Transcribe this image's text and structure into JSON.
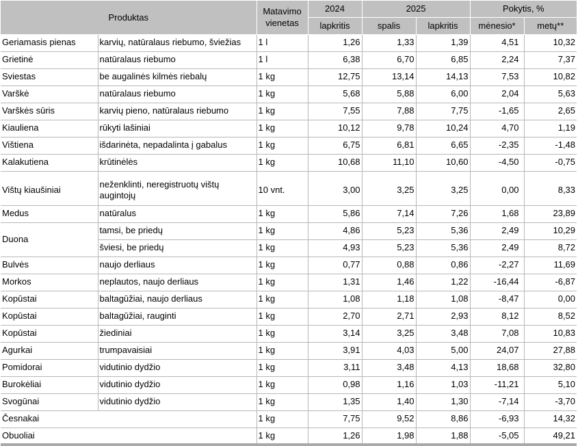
{
  "colors": {
    "header_bg": "#c0c0c0",
    "grid_line": "#b7b7b7",
    "bottom_bar": "#a9a9a9",
    "text": "#000000",
    "background": "#ffffff"
  },
  "table": {
    "header": {
      "produktas": "Produktas",
      "matavimo_vienetas": "Matavimo vienetas",
      "year_2024": "2024",
      "year_2025": "2025",
      "pokytis": "Pokytis, %",
      "sub_2024_lapkritis": "lapkritis",
      "sub_2025_spalis": "spalis",
      "sub_2025_lapkritis": "lapkritis",
      "sub_menesio": "mėnesio*",
      "sub_metu": "metų**"
    },
    "rows": [
      {
        "name": "Geriamasis pienas",
        "desc": "karvių, natūralaus riebumo, šviežias",
        "unit": "1 l",
        "v2024_11": "1,26",
        "v2025_10": "1,33",
        "v2025_11": "1,39",
        "chg_month": "4,51",
        "chg_year": "10,32"
      },
      {
        "name": "Grietinė",
        "desc": "natūralaus riebumo",
        "unit": "1 l",
        "v2024_11": "6,38",
        "v2025_10": "6,70",
        "v2025_11": "6,85",
        "chg_month": "2,24",
        "chg_year": "7,37"
      },
      {
        "name": "Sviestas",
        "desc": "be augalinės kilmės riebalų",
        "unit": "1 kg",
        "v2024_11": "12,75",
        "v2025_10": "13,14",
        "v2025_11": "14,13",
        "chg_month": "7,53",
        "chg_year": "10,82"
      },
      {
        "name": "Varškė",
        "desc": "natūralaus riebumo",
        "unit": "1 kg",
        "v2024_11": "5,68",
        "v2025_10": "5,88",
        "v2025_11": "6,00",
        "chg_month": "2,04",
        "chg_year": "5,63"
      },
      {
        "name": "Varškės sūris",
        "desc": "karvių pieno, natūralaus riebumo",
        "unit": "1 kg",
        "v2024_11": "7,55",
        "v2025_10": "7,88",
        "v2025_11": "7,75",
        "chg_month": "-1,65",
        "chg_year": "2,65"
      },
      {
        "name": "Kiauliena",
        "desc": "rūkyti lašiniai",
        "unit": "1 kg",
        "v2024_11": "10,12",
        "v2025_10": "9,78",
        "v2025_11": "10,24",
        "chg_month": "4,70",
        "chg_year": "1,19"
      },
      {
        "name": "Vištiena",
        "desc": "išdarinėta, nepadalinta į gabalus",
        "unit": "1 kg",
        "v2024_11": "6,75",
        "v2025_10": "6,81",
        "v2025_11": "6,65",
        "chg_month": "-2,35",
        "chg_year": "-1,48"
      },
      {
        "name": "Kalakutiena",
        "desc": "krūtinėlės",
        "unit": "1 kg",
        "v2024_11": "10,68",
        "v2025_10": "11,10",
        "v2025_11": "10,60",
        "chg_month": "-4,50",
        "chg_year": "-0,75"
      },
      {
        "name": "Vištų kiaušiniai",
        "desc": "neženklinti, neregistruotų vištų augintojų",
        "unit": "10 vnt.",
        "v2024_11": "3,00",
        "v2025_10": "3,25",
        "v2025_11": "3,25",
        "chg_month": "0,00",
        "chg_year": "8,33",
        "tall": true
      },
      {
        "name": "Medus",
        "desc": "natūralus",
        "unit": "1 kg",
        "v2024_11": "5,86",
        "v2025_10": "7,14",
        "v2025_11": "7,26",
        "chg_month": "1,68",
        "chg_year": "23,89"
      },
      {
        "name": "Duona",
        "desc": "tamsi, be priedų",
        "unit": "1 kg",
        "v2024_11": "4,86",
        "v2025_10": "5,23",
        "v2025_11": "5,36",
        "chg_month": "2,49",
        "chg_year": "10,29",
        "group": "start"
      },
      {
        "name": "",
        "desc": "šviesi, be priedų",
        "unit": "1 kg",
        "v2024_11": "4,93",
        "v2025_10": "5,23",
        "v2025_11": "5,36",
        "chg_month": "2,49",
        "chg_year": "8,72",
        "group": "cont"
      },
      {
        "name": "Bulvės",
        "desc": "naujo derliaus",
        "unit": "1 kg",
        "v2024_11": "0,77",
        "v2025_10": "0,88",
        "v2025_11": "0,86",
        "chg_month": "-2,27",
        "chg_year": "11,69"
      },
      {
        "name": "Morkos",
        "desc": "neplautos, naujo derliaus",
        "unit": "1 kg",
        "v2024_11": "1,31",
        "v2025_10": "1,46",
        "v2025_11": "1,22",
        "chg_month": "-16,44",
        "chg_year": "-6,87"
      },
      {
        "name": "Kopūstai",
        "desc": "baltagūžiai, naujo derliaus",
        "unit": "1 kg",
        "v2024_11": "1,08",
        "v2025_10": "1,18",
        "v2025_11": "1,08",
        "chg_month": "-8,47",
        "chg_year": "0,00"
      },
      {
        "name": "Kopūstai",
        "desc": "baltagūžiai, rauginti",
        "unit": "1 kg",
        "v2024_11": "2,70",
        "v2025_10": "2,71",
        "v2025_11": "2,93",
        "chg_month": "8,12",
        "chg_year": "8,52"
      },
      {
        "name": "Kopūstai",
        "desc": "žiediniai",
        "unit": "1 kg",
        "v2024_11": "3,14",
        "v2025_10": "3,25",
        "v2025_11": "3,48",
        "chg_month": "7,08",
        "chg_year": "10,83"
      },
      {
        "name": "Agurkai",
        "desc": "trumpavaisiai",
        "unit": "1 kg",
        "v2024_11": "3,91",
        "v2025_10": "4,03",
        "v2025_11": "5,00",
        "chg_month": "24,07",
        "chg_year": "27,88"
      },
      {
        "name": "Pomidorai",
        "desc": "vidutinio dydžio",
        "unit": "1 kg",
        "v2024_11": "3,11",
        "v2025_10": "3,48",
        "v2025_11": "4,13",
        "chg_month": "18,68",
        "chg_year": "32,80"
      },
      {
        "name": "Burokėliai",
        "desc": "vidutinio dydžio",
        "unit": "1 kg",
        "v2024_11": "0,98",
        "v2025_10": "1,16",
        "v2025_11": "1,03",
        "chg_month": "-11,21",
        "chg_year": "5,10"
      },
      {
        "name": "Svogūnai",
        "desc": "vidutinio dydžio",
        "unit": "1 kg",
        "v2024_11": "1,35",
        "v2025_10": "1,40",
        "v2025_11": "1,30",
        "chg_month": "-7,14",
        "chg_year": "-3,70"
      },
      {
        "name": "Česnakai",
        "desc": "",
        "unit": "1 kg",
        "v2024_11": "7,75",
        "v2025_10": "9,52",
        "v2025_11": "8,86",
        "chg_month": "-6,93",
        "chg_year": "14,32",
        "wide": true
      },
      {
        "name": "Obuoliai",
        "desc": "",
        "unit": "1 kg",
        "v2024_11": "1,26",
        "v2025_10": "1,98",
        "v2025_11": "1,88",
        "chg_month": "-5,05",
        "chg_year": "49,21",
        "wide": true
      }
    ]
  }
}
